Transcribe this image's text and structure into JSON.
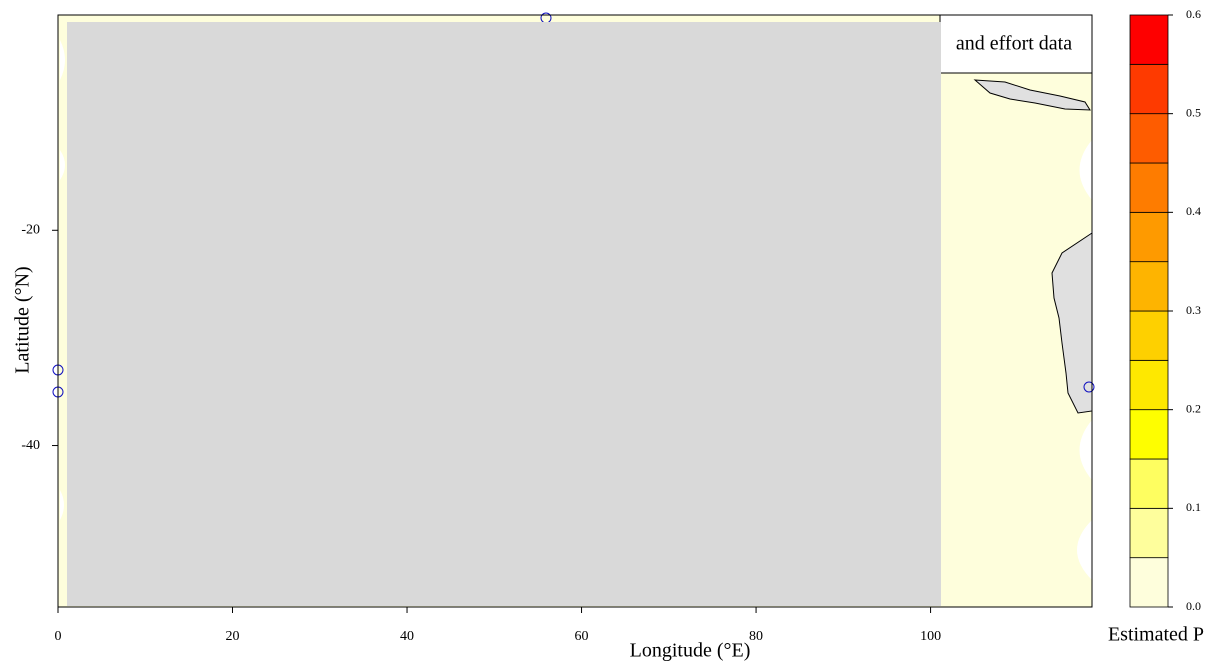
{
  "chart_data": {
    "type": "map",
    "title": "and effort data",
    "xlabel": "Longitude (°E)",
    "ylabel": "Latitude (°N)",
    "xlim": [
      0,
      118.5
    ],
    "ylim": [
      -55,
      0
    ],
    "xticks": [
      0,
      20,
      40,
      60,
      80,
      100
    ],
    "yticks": [
      -20,
      -40
    ],
    "colorbar": {
      "label": "Estimated P",
      "bins": [
        0,
        0.05,
        0.1,
        0.15,
        0.2,
        0.25,
        0.3,
        0.35,
        0.4,
        0.45,
        0.5,
        0.55,
        0.6
      ],
      "colors": [
        "#fefedc",
        "#fefe9c",
        "#fefe60",
        "#fefe00",
        "#fee800",
        "#fed000",
        "#feb400",
        "#fe9a00",
        "#fe7c00",
        "#fe5c00",
        "#fe3a00",
        "#fe0000"
      ],
      "ticks": [
        {
          "value": 0,
          "label": "0.0"
        },
        0.1,
        0.2,
        0.3,
        0.4,
        0.5,
        0.6
      ]
    }
  }
}
